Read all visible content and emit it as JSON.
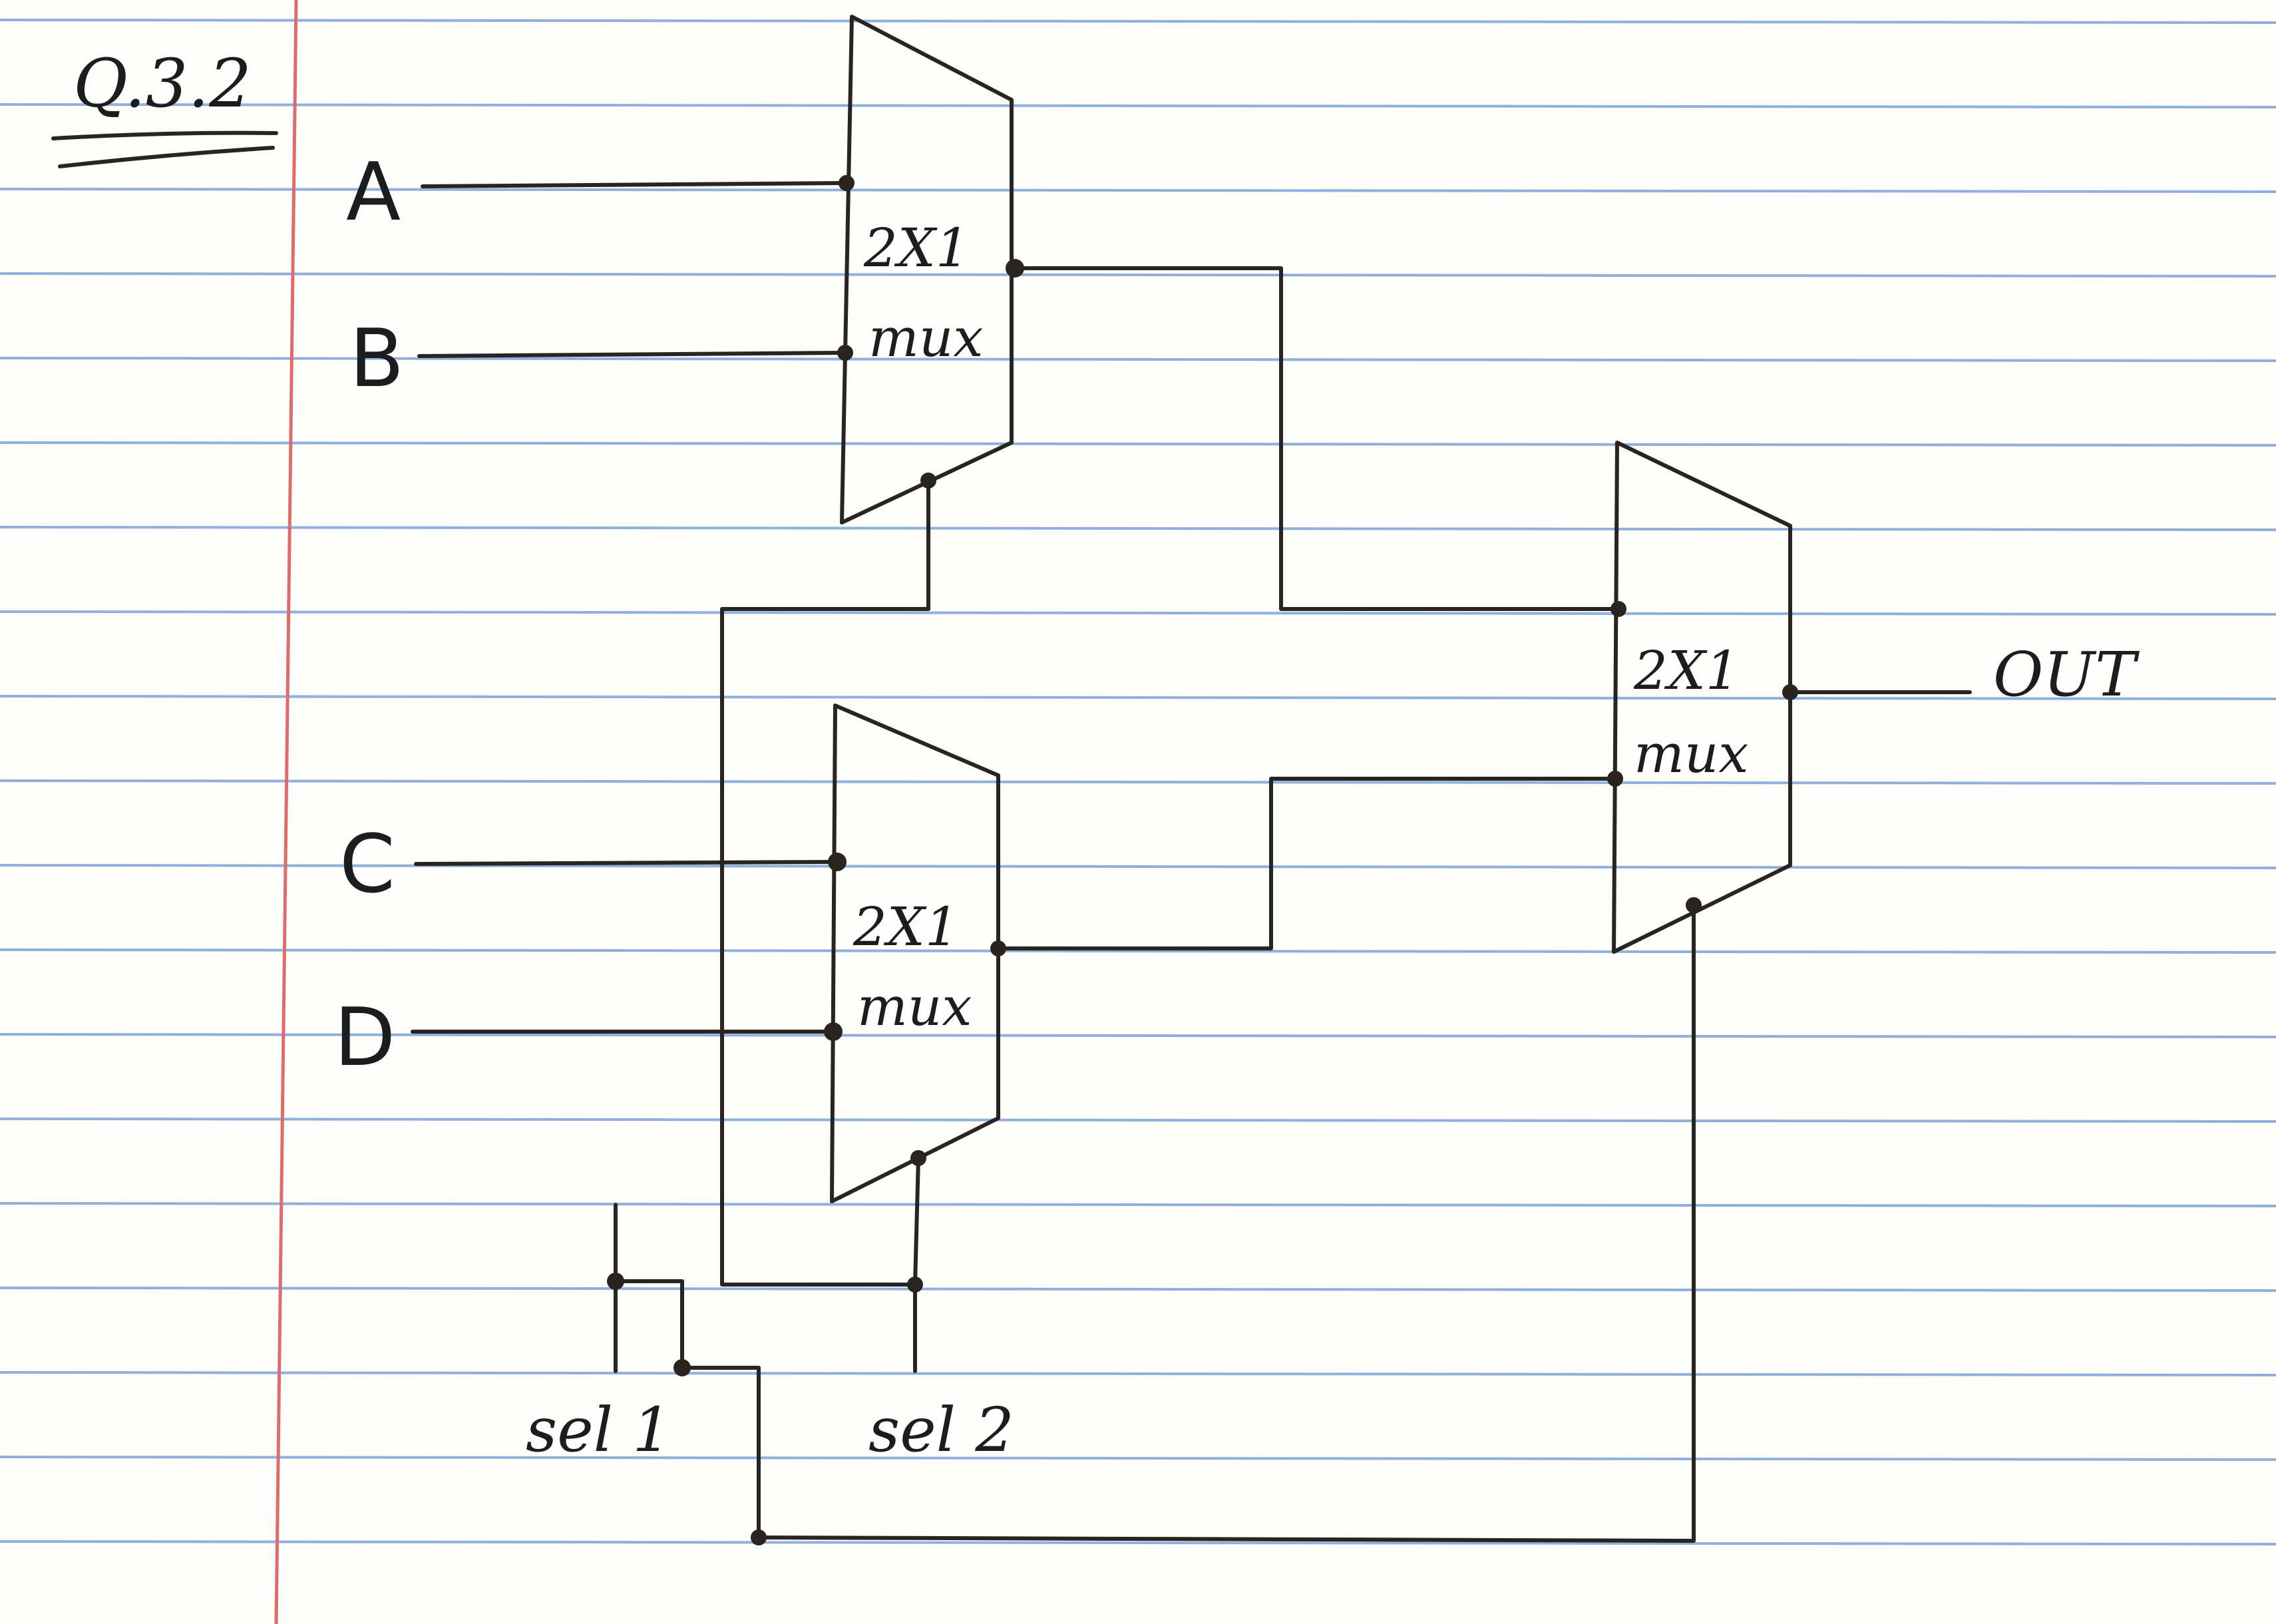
{
  "title": "Q.3.2",
  "inputs": {
    "a": "A",
    "b": "B",
    "c": "C",
    "d": "D"
  },
  "output": "OUT",
  "selects": {
    "sel1": "sel 1",
    "sel2": "sel 2"
  },
  "muxes": [
    {
      "size": "2X1",
      "name": "mux"
    },
    {
      "size": "2X1",
      "name": "mux"
    },
    {
      "size": "2X1",
      "name": "mux"
    }
  ],
  "colors": {
    "ink": "#2a2420",
    "ruled_line": "#8fb0dc",
    "margin_line": "#e06b6b",
    "paper": "#fdfdfb"
  }
}
